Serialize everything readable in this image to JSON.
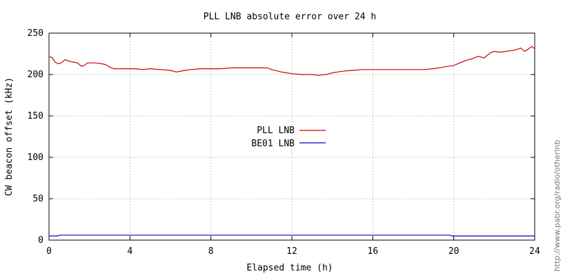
{
  "chart_data": {
    "type": "line",
    "title": "PLL LNB absolute error over 24 h",
    "xlabel": "Elapsed time (h)",
    "ylabel": "CW beacon offset (kHz)",
    "xlim": [
      0,
      24
    ],
    "ylim": [
      0,
      250
    ],
    "x_ticks": [
      "0",
      "4",
      "8",
      "12",
      "16",
      "20",
      "24"
    ],
    "y_ticks": [
      "0",
      "50",
      "100",
      "150",
      "200",
      "250"
    ],
    "grid": true,
    "legend_position": "center",
    "series": [
      {
        "name": "PLL LNB",
        "color": "#cc0000",
        "x": [
          0,
          0.15,
          0.3,
          0.45,
          0.6,
          0.8,
          1.0,
          1.2,
          1.4,
          1.6,
          1.75,
          1.9,
          2.1,
          2.3,
          2.6,
          2.8,
          3.0,
          3.2,
          3.5,
          4.0,
          4.3,
          4.6,
          5.0,
          5.5,
          6.0,
          6.3,
          6.7,
          7.0,
          7.5,
          8.0,
          8.5,
          9.0,
          9.5,
          10.0,
          10.5,
          10.8,
          11.0,
          11.5,
          12.0,
          12.5,
          13.0,
          13.3,
          13.7,
          14.0,
          14.5,
          15.0,
          15.5,
          16.0,
          16.5,
          17.0,
          17.5,
          18.0,
          18.5,
          19.0,
          19.5,
          20.0,
          20.3,
          20.6,
          20.9,
          21.2,
          21.5,
          21.8,
          22.0,
          22.3,
          22.6,
          22.9,
          23.1,
          23.3,
          23.5,
          23.7,
          23.85,
          24.0
        ],
        "y": [
          221,
          221,
          215,
          213,
          214,
          218,
          216,
          215,
          214,
          210,
          211,
          214,
          214,
          214,
          213,
          212,
          209,
          207,
          207,
          207,
          207,
          206,
          207,
          206,
          205,
          203,
          205,
          206,
          207,
          207,
          207,
          208,
          208,
          208,
          208,
          208,
          206,
          203,
          201,
          200,
          200,
          199,
          200,
          202,
          204,
          205,
          206,
          206,
          206,
          206,
          206,
          206,
          206,
          207,
          209,
          211,
          214,
          217,
          219,
          222,
          220,
          226,
          228,
          227,
          228,
          229,
          230,
          232,
          228,
          231,
          234,
          231
        ]
      },
      {
        "name": "BE01 LNB",
        "color": "#0000cc",
        "x": [
          0,
          0.45,
          0.5,
          0.6,
          0.8,
          1.0,
          1.1,
          5,
          10,
          15,
          19.5,
          19.8,
          19.9,
          20,
          22,
          24
        ],
        "y": [
          5,
          5,
          6,
          6,
          6,
          6,
          6,
          6,
          6,
          6,
          6,
          6,
          5,
          5,
          5,
          5
        ]
      }
    ]
  },
  "side_text": "http://www.pabr.org/radio/otherlnb"
}
